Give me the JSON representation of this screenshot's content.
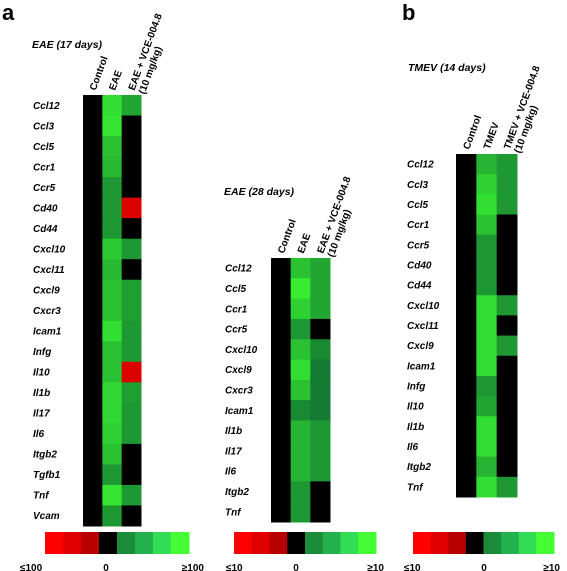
{
  "colors": {
    "black": "#000000",
    "green_levels": [
      "#1f7a3a",
      "#2e9a4c",
      "#1fb35a",
      "#22d66a",
      "#33ee66",
      "#66ff22"
    ],
    "dark_green": [
      "#0f2a16",
      "#123b1c"
    ],
    "red_levels": [
      "#e60000",
      "#cc0000"
    ]
  },
  "panel_a": {
    "letter": "a",
    "heatmap_1": {
      "title": "EAE (17 days)",
      "columns": [
        "Control",
        "EAE",
        "EAE + VCE-004.8\n(10 mg/kg)"
      ],
      "rows": [
        "Ccl12",
        "Ccl3",
        "Ccl5",
        "Ccr1",
        "Ccr5",
        "Cd40",
        "Cd44",
        "Cxcl10",
        "Cxcl11",
        "Cxcl9",
        "Cxcr3",
        "Icam1",
        "Infg",
        "Il10",
        "Il1b",
        "Il17",
        "Il6",
        "Itgb2",
        "Tgfb1",
        "Tnf",
        "Vcam"
      ]
    },
    "heatmap_2": {
      "title": "EAE (28 days)",
      "columns": [
        "Control",
        "EAE",
        "EAE + VCE-004.8\n(10 mg/kg)"
      ],
      "rows": [
        "Ccl12",
        "Ccl5",
        "Ccr1",
        "Ccr5",
        "Cxcl10",
        "Cxcl9",
        "Cxcr3",
        "Icam1",
        "Il1b",
        "Il17",
        "Il6",
        "Itgb2",
        "Tnf"
      ]
    },
    "colorbar_1": {
      "min_label": "≤100",
      "mid_label": "0",
      "max_label": "≥100"
    },
    "colorbar_2": {
      "min_label": "≤10",
      "mid_label": "0",
      "max_label": "≥10"
    }
  },
  "panel_b": {
    "letter": "b",
    "heatmap_3": {
      "title": "TMEV (14 days)",
      "columns": [
        "Control",
        "TMEV",
        "TMEV + VCE-004.8\n(10 mg/kg)"
      ],
      "rows": [
        "Ccl12",
        "Ccl3",
        "Ccl5",
        "Ccr1",
        "Ccr5",
        "Cd40",
        "Cd44",
        "Cxcl10",
        "Cxcl11",
        "Cxcl9",
        "Icam1",
        "Infg",
        "Il10",
        "Il1b",
        "Il6",
        "Itgb2",
        "Tnf"
      ]
    },
    "colorbar_3": {
      "min_label": "≤10",
      "mid_label": "0",
      "max_label": "≥10"
    }
  },
  "chart_data": [
    {
      "type": "heatmap",
      "title": "EAE (17 days)",
      "x": [
        "Control",
        "EAE",
        "EAE + VCE-004.8 (10 mg/kg)"
      ],
      "y": [
        "Ccl12",
        "Ccl3",
        "Ccl5",
        "Ccr1",
        "Ccr5",
        "Cd40",
        "Cd44",
        "Cxcl10",
        "Cxcl11",
        "Cxcl9",
        "Cxcr3",
        "Icam1",
        "Infg",
        "Il10",
        "Il1b",
        "Il17",
        "Il6",
        "Itgb2",
        "Tgfb1",
        "Tnf",
        "Vcam"
      ],
      "values": [
        [
          0,
          80,
          40
        ],
        [
          0,
          85,
          0
        ],
        [
          0,
          60,
          0
        ],
        [
          0,
          55,
          0
        ],
        [
          0,
          30,
          0
        ],
        [
          0,
          30,
          -100
        ],
        [
          0,
          30,
          0
        ],
        [
          0,
          65,
          30
        ],
        [
          0,
          55,
          0
        ],
        [
          0,
          60,
          35
        ],
        [
          0,
          60,
          35
        ],
        [
          0,
          80,
          30
        ],
        [
          0,
          60,
          30
        ],
        [
          0,
          60,
          -100
        ],
        [
          0,
          75,
          35
        ],
        [
          0,
          75,
          30
        ],
        [
          0,
          70,
          30
        ],
        [
          0,
          60,
          0
        ],
        [
          0,
          30,
          0
        ],
        [
          0,
          85,
          30
        ],
        [
          0,
          30,
          0
        ]
      ],
      "colorbar": {
        "min": -100,
        "max": 100,
        "min_label": "≤100",
        "mid_label": "0",
        "max_label": "≥100"
      }
    },
    {
      "type": "heatmap",
      "title": "EAE (28 days)",
      "x": [
        "Control",
        "EAE",
        "EAE + VCE-004.8 (10 mg/kg)"
      ],
      "y": [
        "Ccl12",
        "Ccl5",
        "Ccr1",
        "Ccr5",
        "Cxcl10",
        "Cxcl9",
        "Cxcr3",
        "Icam1",
        "Il1b",
        "Il17",
        "Il6",
        "Itgb2",
        "Tnf"
      ],
      "values": [
        [
          0,
          6,
          4
        ],
        [
          0,
          9,
          4
        ],
        [
          0,
          7,
          4
        ],
        [
          0,
          3,
          0
        ],
        [
          0,
          6,
          2
        ],
        [
          0,
          8,
          1
        ],
        [
          0,
          6,
          1
        ],
        [
          0,
          2,
          1
        ],
        [
          0,
          5,
          3
        ],
        [
          0,
          5,
          3
        ],
        [
          0,
          5,
          3
        ],
        [
          0,
          3,
          0
        ],
        [
          0,
          3,
          0
        ]
      ],
      "colorbar": {
        "min": -10,
        "max": 10,
        "min_label": "≤10",
        "mid_label": "0",
        "max_label": "≥10"
      }
    },
    {
      "type": "heatmap",
      "title": "TMEV (14 days)",
      "x": [
        "Control",
        "TMEV",
        "TMEV + VCE-004.8 (10 mg/kg)"
      ],
      "y": [
        "Ccl12",
        "Ccl3",
        "Ccl5",
        "Ccr1",
        "Ccr5",
        "Cd40",
        "Cd44",
        "Cxcl10",
        "Cxcl11",
        "Cxcl9",
        "Icam1",
        "Infg",
        "Il10",
        "Il1b",
        "Il6",
        "Itgb2",
        "Tnf"
      ],
      "values": [
        [
          0,
          5,
          3
        ],
        [
          0,
          7,
          3
        ],
        [
          0,
          8,
          3
        ],
        [
          0,
          6,
          0
        ],
        [
          0,
          3,
          0
        ],
        [
          0,
          3,
          0
        ],
        [
          0,
          3,
          0
        ],
        [
          0,
          8,
          3
        ],
        [
          0,
          8,
          0
        ],
        [
          0,
          8,
          3
        ],
        [
          0,
          8,
          0
        ],
        [
          0,
          3,
          0
        ],
        [
          0,
          4,
          0
        ],
        [
          0,
          8,
          0
        ],
        [
          0,
          8,
          0
        ],
        [
          0,
          5,
          0
        ],
        [
          0,
          8,
          3
        ]
      ],
      "colorbar": {
        "min": -10,
        "max": 10,
        "min_label": "≤10",
        "mid_label": "0",
        "max_label": "≥10"
      }
    }
  ]
}
